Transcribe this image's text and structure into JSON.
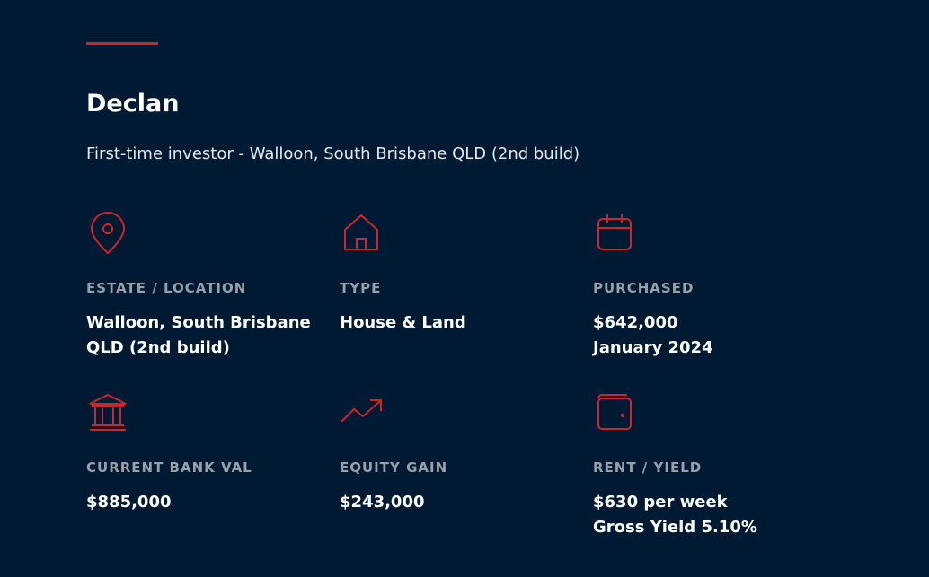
{
  "header": {
    "title": "Declan",
    "subtitle": "First-time investor - Walloon,  South Brisbane QLD (2nd build)"
  },
  "stats": [
    {
      "label": "ESTATE / LOCATION",
      "lines": [
        "Walloon,  South Brisbane",
        " QLD (2nd build)"
      ]
    },
    {
      "label": "TYPE",
      "lines": [
        "House & Land"
      ]
    },
    {
      "label": "PURCHASED",
      "lines": [
        "$642,000",
        "January 2024"
      ]
    },
    {
      "label": "CURRENT BANK VAL",
      "lines": [
        "$885,000"
      ]
    },
    {
      "label": "EQUITY GAIN",
      "lines": [
        "$243,000"
      ]
    },
    {
      "label": "RENT / YIELD",
      "lines": [
        "$630 per week",
        "Gross Yield 5.10%"
      ]
    }
  ]
}
